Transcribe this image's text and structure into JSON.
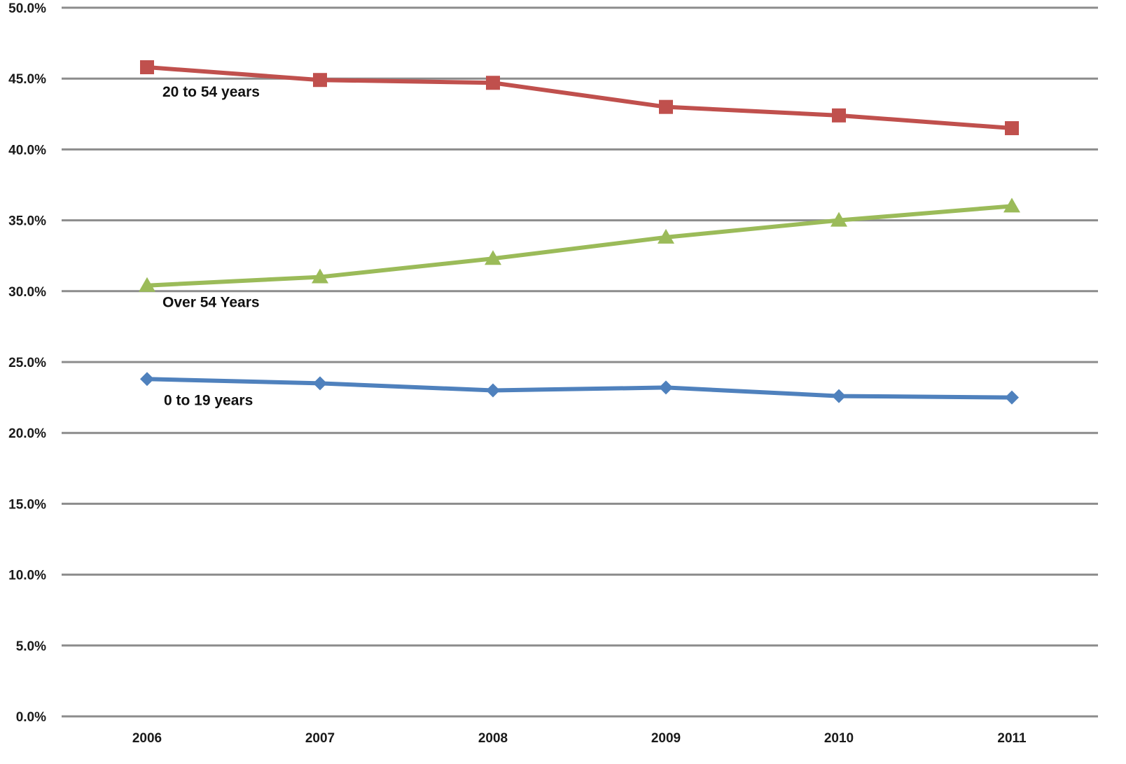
{
  "chart_data": {
    "type": "line",
    "title": "",
    "xlabel": "",
    "ylabel": "",
    "x": [
      "2006",
      "2007",
      "2008",
      "2009",
      "2010",
      "2011"
    ],
    "ylim": [
      0,
      50
    ],
    "y_ticks": [
      0,
      5,
      10,
      15,
      20,
      25,
      30,
      35,
      40,
      45,
      50
    ],
    "y_tick_labels": [
      "0.0%",
      "5.0%",
      "10.0%",
      "15.0%",
      "20.0%",
      "25.0%",
      "30.0%",
      "35.0%",
      "40.0%",
      "45.0%",
      "50.0%"
    ],
    "grid": true,
    "legend": "none (inline series labels)",
    "series": [
      {
        "name": "20 to 54 years",
        "values": [
          45.8,
          44.9,
          44.7,
          43.0,
          42.4,
          41.5
        ],
        "color": "#c0504d",
        "marker": "square"
      },
      {
        "name": "Over 54 Years",
        "values": [
          30.4,
          31.0,
          32.3,
          33.8,
          35.0,
          36.0
        ],
        "color": "#9bbb59",
        "marker": "triangle"
      },
      {
        "name": "0 to 19 years",
        "values": [
          23.8,
          23.5,
          23.0,
          23.2,
          22.6,
          22.5
        ],
        "color": "#4f81bd",
        "marker": "diamond"
      }
    ]
  }
}
